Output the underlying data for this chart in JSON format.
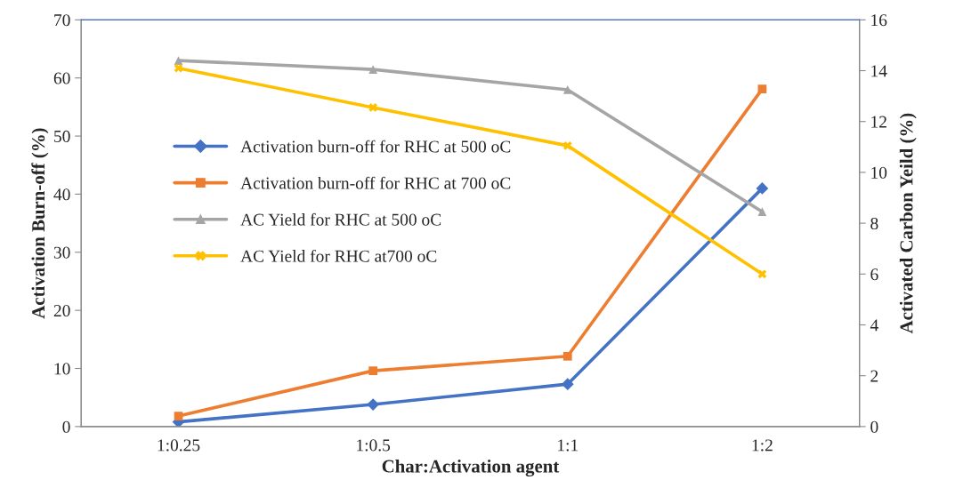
{
  "chart_data": {
    "type": "line",
    "xlabel": "Char:Activation agent",
    "ylabel": "Activation Burn-off (%)",
    "y2label": "Activated Carbon Yeild (%)",
    "categories": [
      "1:0.25",
      "1:0.5",
      "1:1",
      "1:2"
    ],
    "series": [
      {
        "name": "Activation burn-off for RHC at 500 oC",
        "color": "#4472c4",
        "marker": "diamond",
        "values": [
          0.8,
          3.8,
          7.3,
          41
        ]
      },
      {
        "name": "Activation burn-off for RHC at 700 oC",
        "color": "#ed7d31",
        "marker": "square",
        "values": [
          1.8,
          9.6,
          12.1,
          58.1
        ]
      },
      {
        "name": "AC Yield for RHC at 500 oC",
        "color": "#a5a5a5",
        "marker": "triangle",
        "axis": "y2",
        "values": [
          14.4,
          14.05,
          13.25,
          8.45
        ]
      },
      {
        "name": "AC Yield for RHC at700 oC",
        "color": "#ffc000",
        "marker": "cross",
        "axis": "y2",
        "values": [
          14.1,
          12.55,
          11.05,
          6.0
        ]
      }
    ],
    "ylim": [
      0,
      70
    ],
    "yticks": [
      0,
      10,
      20,
      30,
      40,
      50,
      60,
      70
    ],
    "y2lim": [
      0,
      16
    ],
    "y2ticks": [
      0,
      2,
      4,
      6,
      8,
      10,
      12,
      14,
      16
    ],
    "grid": false,
    "legend": "left"
  }
}
